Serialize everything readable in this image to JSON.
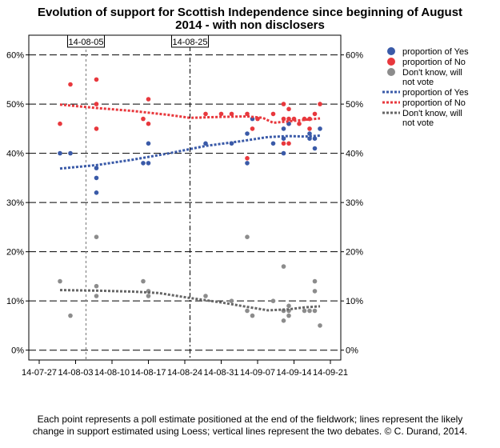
{
  "title": {
    "line1": "Evolution of support for Scottish Independence since beginning of August",
    "line2": "2014 - with non disclosers"
  },
  "caption": {
    "line1": "Each point represents a poll estimate positioned at the end of the fieldwork; lines represent the likely",
    "line2": "change in support estimated using Loess; vertical lines represent the two debates. © C. Durand, 2014."
  },
  "colors": {
    "yes": "#3a5aa8",
    "no": "#e8383d",
    "dk": "#8c8c8c",
    "dk_line": "#666666",
    "grid": "#000000"
  },
  "chart_data": {
    "type": "scatter",
    "x_ticks": [
      "14-07-27",
      "14-08-03",
      "14-08-10",
      "14-08-17",
      "14-08-24",
      "14-08-31",
      "14-09-07",
      "14-09-14",
      "14-09-21"
    ],
    "xlim": [
      "2014-07-25",
      "2014-09-23"
    ],
    "y_ticks": [
      "0%",
      "10%",
      "20%",
      "30%",
      "40%",
      "50%",
      "60%"
    ],
    "ylim": [
      -2,
      64
    ],
    "grid": true,
    "debates": [
      {
        "label": "14-08-05",
        "date": "2014-08-05"
      },
      {
        "label": "14-08-25",
        "date": "2014-08-25"
      }
    ],
    "legend": {
      "position": "right",
      "entries": [
        {
          "key": "yes",
          "style": "point",
          "label": "proportion of Yes"
        },
        {
          "key": "no",
          "style": "point",
          "label": "proportion of No"
        },
        {
          "key": "dk",
          "style": "point",
          "label": "Don't know, will not vote"
        },
        {
          "key": "yes",
          "style": "line",
          "label": "proportion of Yes"
        },
        {
          "key": "no",
          "style": "line",
          "label": "proportion of No"
        },
        {
          "key": "dk_line",
          "style": "line",
          "label": "Don't know, will not vote"
        }
      ]
    },
    "points": {
      "yes": [
        [
          "2014-07-31",
          40
        ],
        [
          "2014-08-02",
          40
        ],
        [
          "2014-08-07",
          35
        ],
        [
          "2014-08-07",
          32
        ],
        [
          "2014-08-07",
          37
        ],
        [
          "2014-08-16",
          38
        ],
        [
          "2014-08-17",
          38
        ],
        [
          "2014-08-17",
          42
        ],
        [
          "2014-08-28",
          42
        ],
        [
          "2014-09-02",
          42
        ],
        [
          "2014-09-05",
          38
        ],
        [
          "2014-09-05",
          44
        ],
        [
          "2014-09-06",
          47
        ],
        [
          "2014-09-10",
          42
        ],
        [
          "2014-09-12",
          40
        ],
        [
          "2014-09-12",
          43
        ],
        [
          "2014-09-12",
          45
        ],
        [
          "2014-09-13",
          46
        ],
        [
          "2014-09-17",
          43
        ],
        [
          "2014-09-17",
          44
        ],
        [
          "2014-09-18",
          41
        ],
        [
          "2014-09-18",
          43
        ],
        [
          "2014-09-19",
          45
        ]
      ],
      "no": [
        [
          "2014-07-31",
          46
        ],
        [
          "2014-08-02",
          54
        ],
        [
          "2014-08-07",
          55
        ],
        [
          "2014-08-07",
          50
        ],
        [
          "2014-08-07",
          45
        ],
        [
          "2014-08-16",
          47
        ],
        [
          "2014-08-17",
          46
        ],
        [
          "2014-08-17",
          51
        ],
        [
          "2014-08-28",
          48
        ],
        [
          "2014-08-31",
          48
        ],
        [
          "2014-09-02",
          48
        ],
        [
          "2014-09-05",
          39
        ],
        [
          "2014-09-05",
          48
        ],
        [
          "2014-09-06",
          45
        ],
        [
          "2014-09-07",
          47
        ],
        [
          "2014-09-10",
          48
        ],
        [
          "2014-09-12",
          47
        ],
        [
          "2014-09-12",
          50
        ],
        [
          "2014-09-12",
          42
        ],
        [
          "2014-09-13",
          49
        ],
        [
          "2014-09-13",
          47
        ],
        [
          "2014-09-13",
          46
        ],
        [
          "2014-09-13",
          42
        ],
        [
          "2014-09-14",
          47
        ],
        [
          "2014-09-15",
          46
        ],
        [
          "2014-09-16",
          47
        ],
        [
          "2014-09-17",
          45
        ],
        [
          "2014-09-17",
          47
        ],
        [
          "2014-09-18",
          48
        ],
        [
          "2014-09-19",
          50
        ]
      ],
      "dk": [
        [
          "2014-07-31",
          14
        ],
        [
          "2014-08-02",
          7
        ],
        [
          "2014-08-07",
          23
        ],
        [
          "2014-08-07",
          13
        ],
        [
          "2014-08-07",
          11
        ],
        [
          "2014-08-16",
          14
        ],
        [
          "2014-08-17",
          12
        ],
        [
          "2014-08-17",
          11
        ],
        [
          "2014-08-28",
          11
        ],
        [
          "2014-09-02",
          10
        ],
        [
          "2014-09-05",
          23
        ],
        [
          "2014-09-05",
          8
        ],
        [
          "2014-09-06",
          7
        ],
        [
          "2014-09-10",
          10
        ],
        [
          "2014-09-12",
          17
        ],
        [
          "2014-09-12",
          8
        ],
        [
          "2014-09-12",
          6
        ],
        [
          "2014-09-13",
          9
        ],
        [
          "2014-09-13",
          8
        ],
        [
          "2014-09-13",
          7
        ],
        [
          "2014-09-16",
          8
        ],
        [
          "2014-09-17",
          8
        ],
        [
          "2014-09-18",
          14
        ],
        [
          "2014-09-18",
          12
        ],
        [
          "2014-09-18",
          8
        ],
        [
          "2014-09-19",
          5
        ]
      ]
    },
    "loess": {
      "yes": [
        [
          "2014-07-31",
          36.9
        ],
        [
          "2014-08-07",
          37.6
        ],
        [
          "2014-08-14",
          38.7
        ],
        [
          "2014-08-21",
          40.0
        ],
        [
          "2014-08-28",
          41.5
        ],
        [
          "2014-09-04",
          42.5
        ],
        [
          "2014-09-09",
          43.3
        ],
        [
          "2014-09-13",
          43.5
        ],
        [
          "2014-09-16",
          43.4
        ],
        [
          "2014-09-19",
          43.6
        ]
      ],
      "no": [
        [
          "2014-07-31",
          49.9
        ],
        [
          "2014-08-07",
          49.2
        ],
        [
          "2014-08-14",
          48.6
        ],
        [
          "2014-08-21",
          47.8
        ],
        [
          "2014-08-25",
          47.2
        ],
        [
          "2014-08-31",
          47.4
        ],
        [
          "2014-09-05",
          47.5
        ],
        [
          "2014-09-08",
          47.2
        ],
        [
          "2014-09-10",
          46.2
        ],
        [
          "2014-09-12",
          46.4
        ],
        [
          "2014-09-16",
          46.8
        ],
        [
          "2014-09-19",
          47.1
        ]
      ],
      "dk": [
        [
          "2014-07-31",
          12.2
        ],
        [
          "2014-08-07",
          12.1
        ],
        [
          "2014-08-14",
          11.9
        ],
        [
          "2014-08-19",
          11.6
        ],
        [
          "2014-08-25",
          10.6
        ],
        [
          "2014-08-31",
          9.7
        ],
        [
          "2014-09-05",
          8.8
        ],
        [
          "2014-09-09",
          8.1
        ],
        [
          "2014-09-13",
          8.3
        ],
        [
          "2014-09-16",
          8.7
        ],
        [
          "2014-09-19",
          8.9
        ]
      ]
    }
  }
}
